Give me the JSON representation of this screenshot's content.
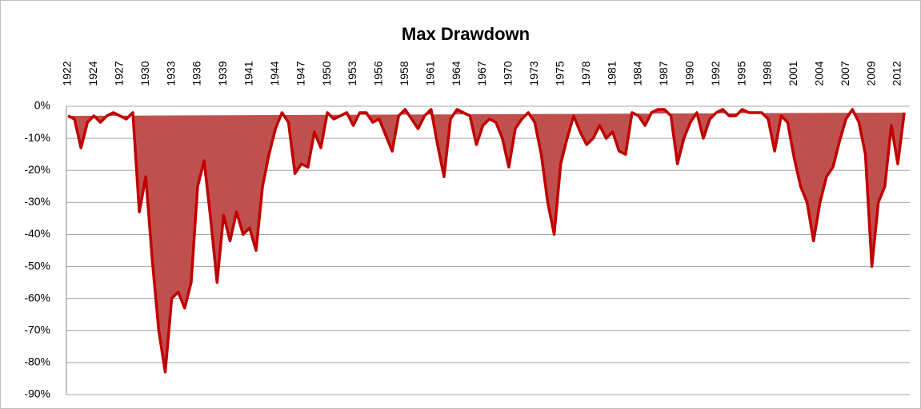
{
  "chart_data": {
    "type": "area",
    "title": "Max Drawdown",
    "categories": [
      "1922",
      null,
      null,
      null,
      "1924",
      null,
      null,
      null,
      "1927",
      null,
      null,
      null,
      "1930",
      null,
      null,
      null,
      "1933",
      null,
      null,
      null,
      "1936",
      null,
      null,
      null,
      "1939",
      null,
      null,
      null,
      "1941",
      null,
      null,
      null,
      "1944",
      null,
      null,
      null,
      "1947",
      null,
      null,
      null,
      "1950",
      null,
      null,
      null,
      "1953",
      null,
      null,
      null,
      "1956",
      null,
      null,
      null,
      "1958",
      null,
      null,
      null,
      "1961",
      null,
      null,
      null,
      "1964",
      null,
      null,
      null,
      "1967",
      null,
      null,
      null,
      "1970",
      null,
      null,
      null,
      "1973",
      null,
      null,
      null,
      "1975",
      null,
      null,
      null,
      "1978",
      null,
      null,
      null,
      "1981",
      null,
      null,
      null,
      "1984",
      null,
      null,
      null,
      "1987",
      null,
      null,
      null,
      "1990",
      null,
      null,
      null,
      "1992",
      null,
      null,
      null,
      "1995",
      null,
      null,
      null,
      "1998",
      null,
      null,
      null,
      "2001",
      null,
      null,
      null,
      "2004",
      null,
      null,
      null,
      "2007",
      null,
      null,
      null,
      "2009",
      null,
      null,
      null,
      "2012",
      null
    ],
    "values": [
      -3,
      -4,
      -13,
      -5,
      -3,
      -5,
      -3,
      -2,
      -3,
      -4,
      -2,
      -33,
      -22,
      -48,
      -70,
      -83,
      -60,
      -58,
      -63,
      -55,
      -25,
      -17,
      -35,
      -55,
      -34,
      -42,
      -33,
      -40,
      -38,
      -45,
      -25,
      -15,
      -7,
      -2,
      -5,
      -21,
      -18,
      -19,
      -8,
      -13,
      -2,
      -4,
      -3,
      -2,
      -6,
      -2,
      -2,
      -5,
      -4,
      -9,
      -14,
      -3,
      -1,
      -4,
      -7,
      -3,
      -1,
      -12,
      -22,
      -4,
      -1,
      -2,
      -3,
      -12,
      -6,
      -4,
      -5,
      -10,
      -19,
      -7,
      -4,
      -2,
      -5,
      -15,
      -30,
      -40,
      -18,
      -10,
      -3,
      -8,
      -12,
      -10,
      -6,
      -10,
      -8,
      -14,
      -15,
      -2,
      -3,
      -6,
      -2,
      -1,
      -1,
      -3,
      -18,
      -10,
      -5,
      -2,
      -10,
      -4,
      -2,
      -1,
      -3,
      -3,
      -1,
      -2,
      -2,
      -2,
      -4,
      -14,
      -3,
      -5,
      -16,
      -25,
      -30,
      -42,
      -30,
      -22,
      -19,
      -11,
      -4,
      -1,
      -5,
      -15,
      -50,
      -30,
      -25,
      -6,
      -18,
      -2
    ],
    "color": "#c00000",
    "fill_color": "#c0504d",
    "ylim": [
      -90,
      0
    ],
    "yticks": [
      {
        "value": 0,
        "label": "0%"
      },
      {
        "value": -10,
        "label": "-10%"
      },
      {
        "value": -20,
        "label": "-20%"
      },
      {
        "value": -30,
        "label": "-30%"
      },
      {
        "value": -40,
        "label": "-40%"
      },
      {
        "value": -50,
        "label": "-50%"
      },
      {
        "value": -60,
        "label": "-60%"
      },
      {
        "value": -70,
        "label": "-70%"
      },
      {
        "value": -80,
        "label": "-80%"
      },
      {
        "value": -90,
        "label": "-90%"
      }
    ],
    "grid": true
  }
}
